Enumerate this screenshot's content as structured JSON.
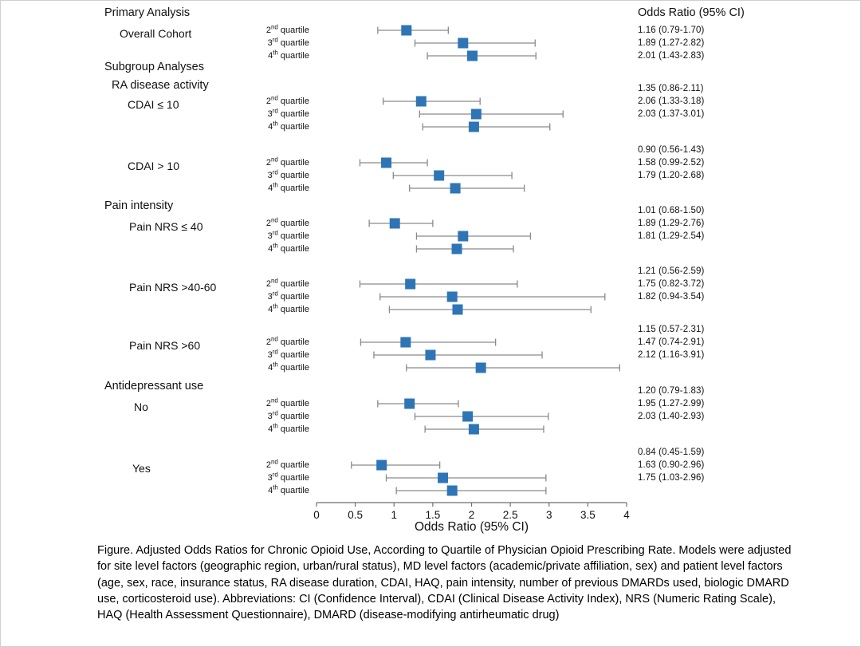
{
  "or_column_header": "Odds Ratio (95% CI)",
  "caption": "Figure. Adjusted Odds Ratios for Chronic Opioid Use, According to Quartile of Physician Opioid Prescribing Rate. Models were adjusted for site level factors (geographic region, urban/rural status), MD level factors (academic/private affiliation, sex) and patient level factors (age, sex, race, insurance status, RA disease duration, CDAI, HAQ, pain intensity, number of previous DMARDs used, biologic DMARD use, corticosteroid use). Abbreviations: CI (Confidence Interval), CDAI (Clinical Disease Activity Index), NRS (Numeric Rating Scale), HAQ (Health Assessment Questionnaire), DMARD (disease-modifying antirheumatic drug)",
  "chart_data": {
    "type": "forest",
    "xlabel": "Odds Ratio (95% CI)",
    "xlim": [
      0,
      4
    ],
    "xtick_labels": [
      "0",
      "0.5",
      "1",
      "1.5",
      "2",
      "2.5",
      "3",
      "3.5",
      "4"
    ],
    "quartile_labels": [
      "2nd quartile",
      "3rd quartile",
      "4th quartile"
    ],
    "marker_color": "#2e75b6",
    "ci_color": "#8a8a8a",
    "axis_color": "#6e6e6e",
    "legend_position": "none",
    "grid": false,
    "sections": [
      {
        "header": "Primary Analysis",
        "groups": [
          {
            "label": "Overall Cohort",
            "rows": [
              {
                "or": 1.16,
                "lo": 0.79,
                "hi": 1.7,
                "text": "1.16 (0.79-1.70)"
              },
              {
                "or": 1.89,
                "lo": 1.27,
                "hi": 2.82,
                "text": "1.89 (1.27-2.82)"
              },
              {
                "or": 2.01,
                "lo": 1.43,
                "hi": 2.83,
                "text": "2.01 (1.43-2.83)"
              }
            ]
          }
        ]
      },
      {
        "header": "Subgroup Analyses",
        "subheader": "RA disease activity",
        "groups": [
          {
            "label": "CDAI ≤ 10",
            "rows": [
              {
                "or": 1.35,
                "lo": 0.86,
                "hi": 2.11,
                "text": "1.35 (0.86-2.11)"
              },
              {
                "or": 2.06,
                "lo": 1.33,
                "hi": 3.18,
                "text": "2.06 (1.33-3.18)"
              },
              {
                "or": 2.03,
                "lo": 1.37,
                "hi": 3.01,
                "text": "2.03 (1.37-3.01)"
              }
            ]
          },
          {
            "label": "CDAI > 10",
            "rows": [
              {
                "or": 0.9,
                "lo": 0.56,
                "hi": 1.43,
                "text": "0.90 (0.56-1.43)"
              },
              {
                "or": 1.58,
                "lo": 0.99,
                "hi": 2.52,
                "text": "1.58 (0.99-2.52)"
              },
              {
                "or": 1.79,
                "lo": 1.2,
                "hi": 2.68,
                "text": "1.79 (1.20-2.68)"
              }
            ]
          }
        ]
      },
      {
        "header": "Pain intensity",
        "groups": [
          {
            "label": "Pain NRS ≤ 40",
            "rows": [
              {
                "or": 1.01,
                "lo": 0.68,
                "hi": 1.5,
                "text": "1.01 (0.68-1.50)"
              },
              {
                "or": 1.89,
                "lo": 1.29,
                "hi": 2.76,
                "text": "1.89 (1.29-2.76)"
              },
              {
                "or": 1.81,
                "lo": 1.29,
                "hi": 2.54,
                "text": "1.81 (1.29-2.54)"
              }
            ]
          },
          {
            "label": "Pain NRS >40-60",
            "rows": [
              {
                "or": 1.21,
                "lo": 0.56,
                "hi": 2.59,
                "text": "1.21 (0.56-2.59)"
              },
              {
                "or": 1.75,
                "lo": 0.82,
                "hi": 3.72,
                "text": "1.75 (0.82-3.72)"
              },
              {
                "or": 1.82,
                "lo": 0.94,
                "hi": 3.54,
                "text": "1.82 (0.94-3.54)"
              }
            ]
          },
          {
            "label": "Pain NRS >60",
            "rows": [
              {
                "or": 1.15,
                "lo": 0.57,
                "hi": 2.31,
                "text": "1.15 (0.57-2.31)"
              },
              {
                "or": 1.47,
                "lo": 0.74,
                "hi": 2.91,
                "text": "1.47 (0.74-2.91)"
              },
              {
                "or": 2.12,
                "lo": 1.16,
                "hi": 3.91,
                "text": "2.12 (1.16-3.91)"
              }
            ]
          }
        ]
      },
      {
        "header": "Antidepressant use",
        "groups": [
          {
            "label": "No",
            "rows": [
              {
                "or": 1.2,
                "lo": 0.79,
                "hi": 1.83,
                "text": "1.20 (0.79-1.83)"
              },
              {
                "or": 1.95,
                "lo": 1.27,
                "hi": 2.99,
                "text": "1.95 (1.27-2.99)"
              },
              {
                "or": 2.03,
                "lo": 1.4,
                "hi": 2.93,
                "text": "2.03 (1.40-2.93)"
              }
            ]
          },
          {
            "label": "Yes",
            "rows": [
              {
                "or": 0.84,
                "lo": 0.45,
                "hi": 1.59,
                "text": "0.84 (0.45-1.59)"
              },
              {
                "or": 1.63,
                "lo": 0.9,
                "hi": 2.96,
                "text": "1.63 (0.90-2.96)"
              },
              {
                "or": 1.75,
                "lo": 1.03,
                "hi": 2.96,
                "text": "1.75 (1.03-2.96)"
              }
            ]
          }
        ]
      }
    ]
  }
}
